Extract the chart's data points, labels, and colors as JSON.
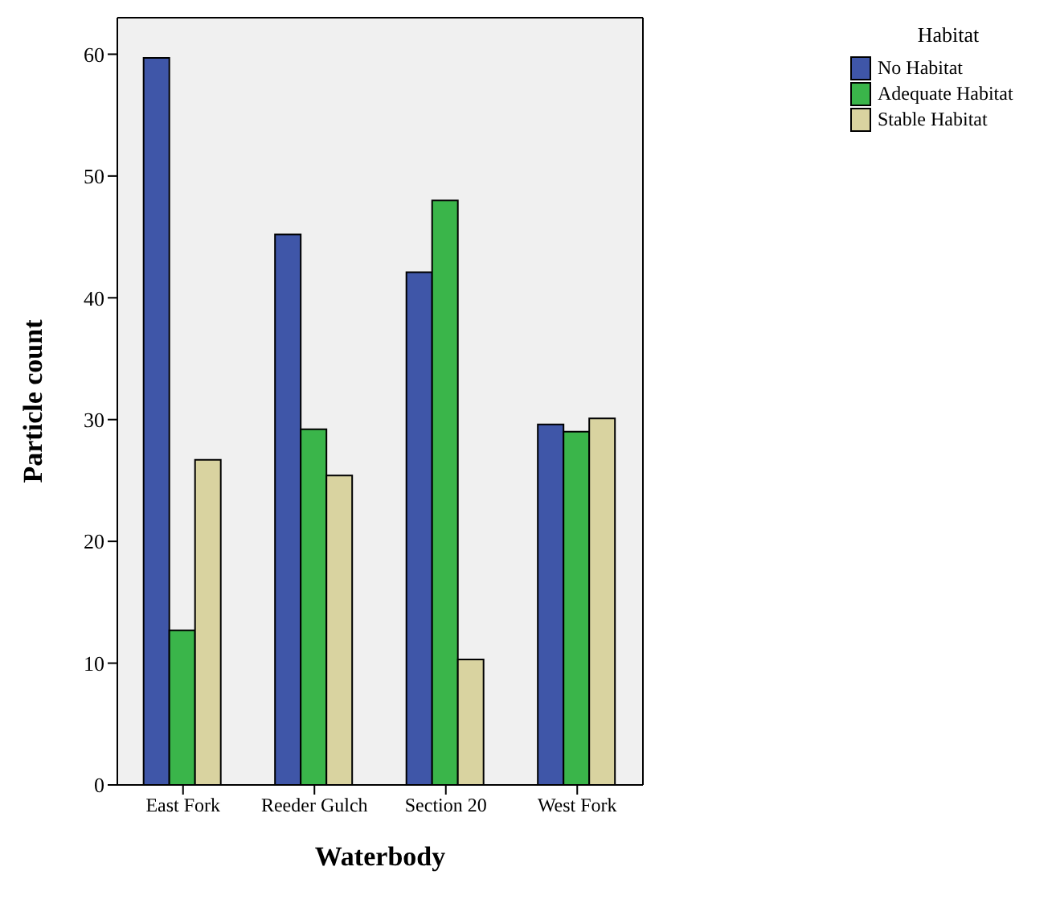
{
  "chart_data": {
    "type": "bar",
    "xlabel": "Waterbody",
    "ylabel": "Particle count",
    "legend_title": "Habitat",
    "legend": "top right",
    "categories": [
      "East Fork",
      "Reeder Gulch",
      "Section 20",
      "West Fork"
    ],
    "series": [
      {
        "name": "No Habitat",
        "color": "#3f56a8",
        "values": [
          59.7,
          45.2,
          42.1,
          29.6
        ]
      },
      {
        "name": "Adequate Habitat",
        "color": "#3ab54a",
        "values": [
          12.7,
          29.2,
          48.0,
          29.0
        ]
      },
      {
        "name": "Stable Habitat",
        "color": "#d9d3a0",
        "values": [
          26.7,
          25.4,
          10.3,
          30.1
        ]
      }
    ],
    "ylim": [
      0,
      63
    ],
    "yticks": [
      0,
      10,
      20,
      30,
      40,
      50,
      60
    ]
  }
}
